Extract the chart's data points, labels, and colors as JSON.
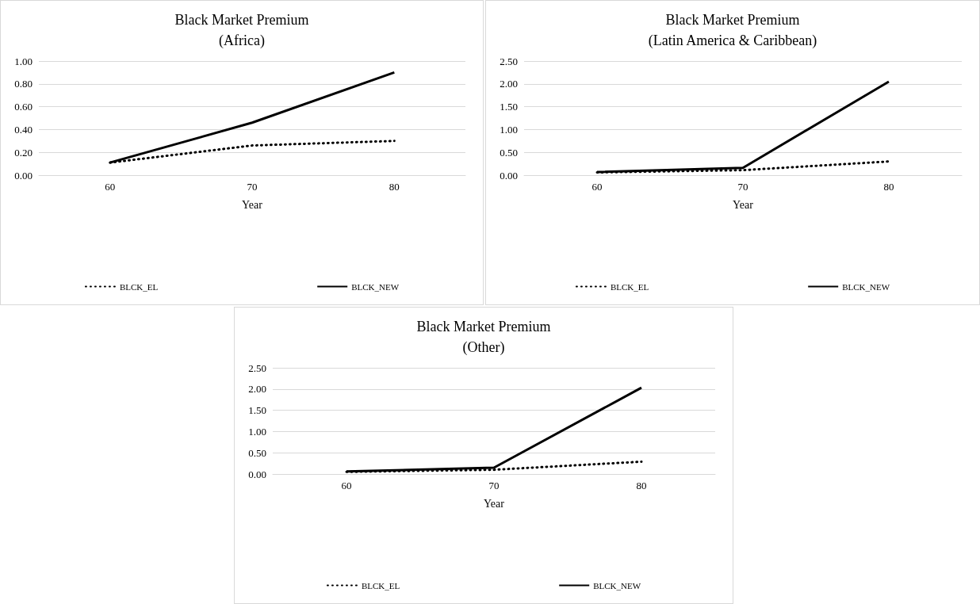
{
  "chart_data": [
    {
      "type": "line",
      "title": "Black Market Premium\n(Africa)",
      "xlabel": "Year",
      "categories": [
        "60",
        "70",
        "80"
      ],
      "ylim": [
        0,
        1
      ],
      "yticks": [
        {
          "value": 0,
          "label": "0.00"
        },
        {
          "value": 0.2,
          "label": "0.20"
        },
        {
          "value": 0.4,
          "label": "0.40"
        },
        {
          "value": 0.6,
          "label": "0.60"
        },
        {
          "value": 0.8,
          "label": "0.80"
        },
        {
          "value": 1,
          "label": "1.00"
        }
      ],
      "grid": "y",
      "legend": "bottom",
      "marker": "none",
      "series": [
        {
          "name": "BLCK_EL",
          "color": "#000000",
          "line_style": "dotted",
          "values": [
            0.11,
            0.26,
            0.3
          ]
        },
        {
          "name": "BLCK_NEW",
          "color": "#000000",
          "line_style": "solid",
          "values": [
            0.11,
            0.46,
            0.9
          ]
        }
      ]
    },
    {
      "type": "line",
      "title": "Black Market Premium\n(Latin America & Caribbean)",
      "xlabel": "Year",
      "categories": [
        "60",
        "70",
        "80"
      ],
      "ylim": [
        0,
        2.5
      ],
      "yticks": [
        {
          "value": 0,
          "label": "0.00"
        },
        {
          "value": 0.5,
          "label": "0.50"
        },
        {
          "value": 1,
          "label": "1.00"
        },
        {
          "value": 1.5,
          "label": "1.50"
        },
        {
          "value": 2,
          "label": "2.00"
        },
        {
          "value": 2.5,
          "label": "2.50"
        }
      ],
      "grid": "y",
      "legend": "bottom",
      "marker": "none",
      "series": [
        {
          "name": "BLCK_EL",
          "color": "#000000",
          "line_style": "dotted",
          "values": [
            0.06,
            0.11,
            0.3
          ]
        },
        {
          "name": "BLCK_NEW",
          "color": "#000000",
          "line_style": "solid",
          "values": [
            0.07,
            0.16,
            2.05
          ]
        }
      ]
    },
    {
      "type": "line",
      "title": "Black Market Premium\n(Other)",
      "xlabel": "Year",
      "categories": [
        "60",
        "70",
        "80"
      ],
      "ylim": [
        0,
        2.5
      ],
      "yticks": [
        {
          "value": 0,
          "label": "0.00"
        },
        {
          "value": 0.5,
          "label": "0.50"
        },
        {
          "value": 1,
          "label": "1.00"
        },
        {
          "value": 1.5,
          "label": "1.50"
        },
        {
          "value": 2,
          "label": "2.00"
        },
        {
          "value": 2.5,
          "label": "2.50"
        }
      ],
      "grid": "y",
      "legend": "bottom",
      "marker": "none",
      "series": [
        {
          "name": "BLCK_EL",
          "color": "#000000",
          "line_style": "dotted",
          "values": [
            0.05,
            0.1,
            0.29
          ]
        },
        {
          "name": "BLCK_NEW",
          "color": "#000000",
          "line_style": "solid",
          "values": [
            0.06,
            0.15,
            2.03
          ]
        }
      ]
    }
  ]
}
